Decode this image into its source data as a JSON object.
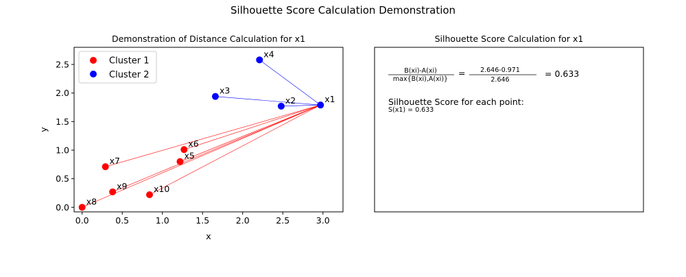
{
  "figure": {
    "suptitle": "Silhouette Score Calculation Demonstration"
  },
  "chart_data": {
    "type": "scatter",
    "title": "Demonstration of Distance Calculation for x1",
    "xlabel": "x",
    "ylabel": "y",
    "xlim": [
      -0.1,
      3.25
    ],
    "ylim": [
      -0.08,
      2.8
    ],
    "xticks": [
      "0.0",
      "0.5",
      "1.0",
      "1.5",
      "2.0",
      "2.5",
      "3.0"
    ],
    "xtick_values": [
      0.0,
      0.5,
      1.0,
      1.5,
      2.0,
      2.5,
      3.0
    ],
    "yticks": [
      "0.0",
      "0.5",
      "1.0",
      "1.5",
      "2.0",
      "2.5"
    ],
    "ytick_values": [
      0.0,
      0.5,
      1.0,
      1.5,
      2.0,
      2.5
    ],
    "legend_position": "top-left",
    "reference_point": "x1",
    "series": [
      {
        "name": "Cluster 1",
        "color": "#ff0000",
        "points": [
          {
            "label": "x5",
            "x": 1.22,
            "y": 0.8
          },
          {
            "label": "x6",
            "x": 1.27,
            "y": 1.01
          },
          {
            "label": "x7",
            "x": 0.29,
            "y": 0.71
          },
          {
            "label": "x8",
            "x": 0.0,
            "y": 0.0
          },
          {
            "label": "x9",
            "x": 0.38,
            "y": 0.27
          },
          {
            "label": "x10",
            "x": 0.84,
            "y": 0.22
          }
        ]
      },
      {
        "name": "Cluster 2",
        "color": "#0000ff",
        "points": [
          {
            "label": "x1",
            "x": 2.97,
            "y": 1.79
          },
          {
            "label": "x2",
            "x": 2.48,
            "y": 1.77
          },
          {
            "label": "x3",
            "x": 1.66,
            "y": 1.94
          },
          {
            "label": "x4",
            "x": 2.21,
            "y": 2.58
          }
        ]
      }
    ]
  },
  "calc_panel": {
    "title": "Silhouette Score Calculation for x1",
    "formula_numerator": "B(xi)-A(xi)",
    "formula_denominator": "max{B(xi),A(xi)}",
    "equals1": "=",
    "values_numerator": "2.646-0.971",
    "values_denominator": "2.646",
    "result": "= 0.633",
    "section_heading": "Silhouette Score for each point:",
    "score_line": "S(x1) = 0.633"
  }
}
